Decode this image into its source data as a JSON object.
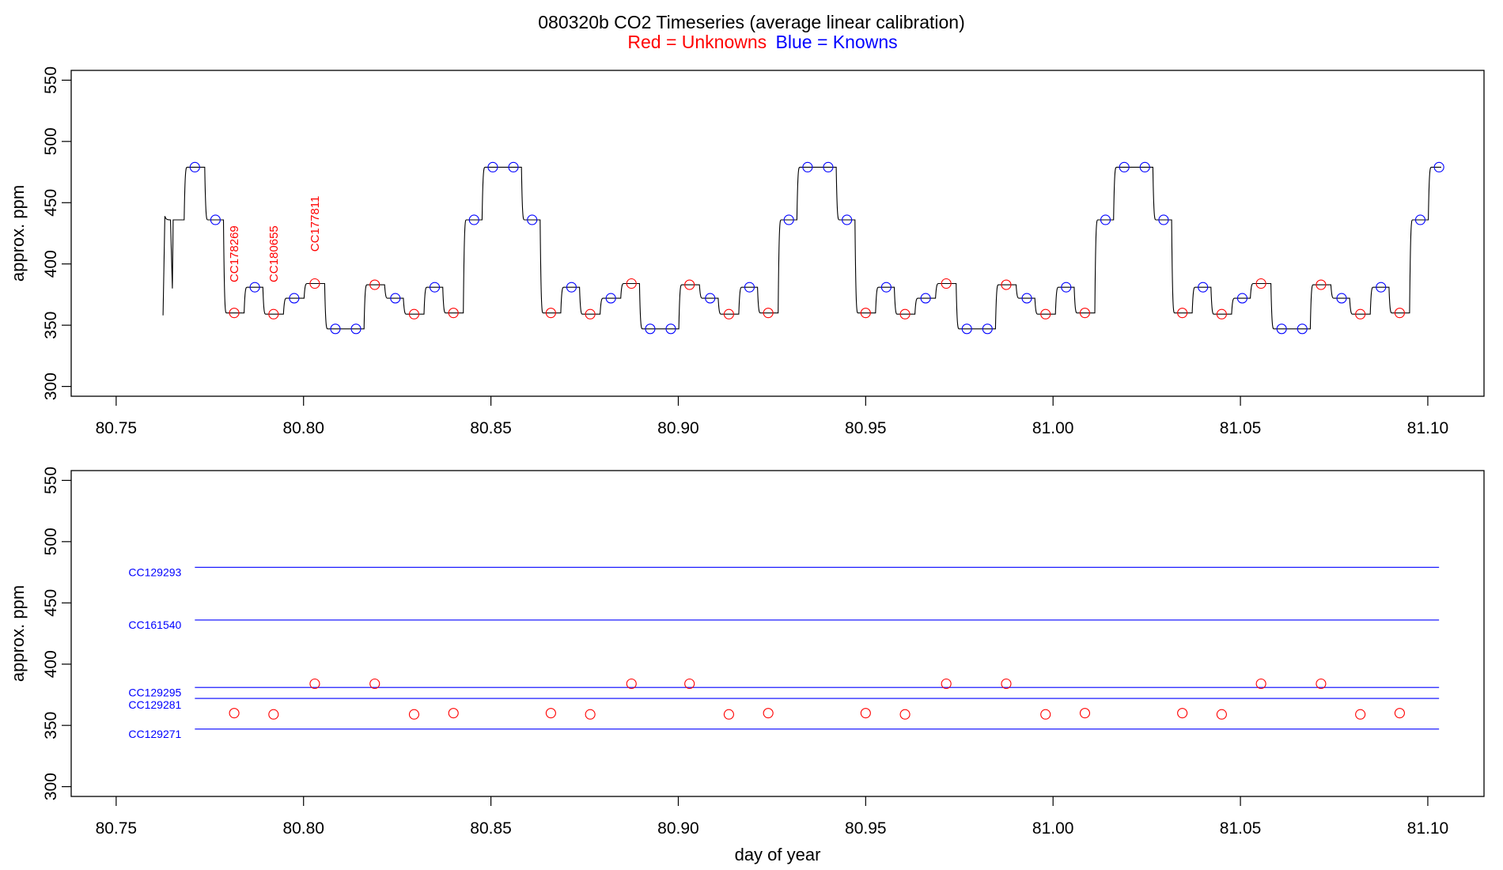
{
  "title": "080320b   CO2 Timeseries (average linear calibration)",
  "subtitle": {
    "red_part": "Red = Unknowns",
    "blue_part": "Blue = Knowns"
  },
  "colors": {
    "unknown": "#ff0000",
    "known": "#0000ff",
    "trace": "#000000",
    "frame": "#000000"
  },
  "chart_data": [
    {
      "type": "line",
      "panel": "top",
      "title": "",
      "xlabel": "",
      "ylabel": "approx. ppm",
      "xlim": [
        80.738,
        81.115
      ],
      "ylim": [
        292,
        558
      ],
      "grid": false,
      "x_ticks": [
        {
          "value": 80.75,
          "label": "80.75"
        },
        {
          "value": 80.8,
          "label": "80.80"
        },
        {
          "value": 80.85,
          "label": "80.85"
        },
        {
          "value": 80.9,
          "label": "80.90"
        },
        {
          "value": 80.95,
          "label": "80.95"
        },
        {
          "value": 81.0,
          "label": "81.00"
        },
        {
          "value": 81.05,
          "label": "81.05"
        },
        {
          "value": 81.1,
          "label": "81.10"
        }
      ],
      "y_ticks": [
        {
          "value": 300,
          "label": "300"
        },
        {
          "value": 350,
          "label": "350"
        },
        {
          "value": 400,
          "label": "400"
        },
        {
          "value": 450,
          "label": "450"
        },
        {
          "value": 500,
          "label": "500"
        },
        {
          "value": 550,
          "label": "550"
        }
      ],
      "trace_start": {
        "x": 80.7625,
        "y": 358
      },
      "series": [
        {
          "name": "",
          "kind": "samples",
          "color": "#ff0000",
          "points": [
            {
              "x": 80.7815,
              "y": 360
            },
            {
              "x": 80.792,
              "y": 359
            },
            {
              "x": 80.803,
              "y": 384
            },
            {
              "x": 80.819,
              "y": 383
            },
            {
              "x": 80.8295,
              "y": 359
            },
            {
              "x": 80.84,
              "y": 360
            },
            {
              "x": 80.866,
              "y": 360
            },
            {
              "x": 80.8765,
              "y": 359
            },
            {
              "x": 80.8875,
              "y": 384
            },
            {
              "x": 80.903,
              "y": 383
            },
            {
              "x": 80.9135,
              "y": 359
            },
            {
              "x": 80.924,
              "y": 360
            },
            {
              "x": 80.95,
              "y": 360
            },
            {
              "x": 80.9605,
              "y": 359
            },
            {
              "x": 80.9715,
              "y": 384
            },
            {
              "x": 80.9875,
              "y": 383
            },
            {
              "x": 80.998,
              "y": 359
            },
            {
              "x": 81.0085,
              "y": 360
            },
            {
              "x": 81.0345,
              "y": 360
            },
            {
              "x": 81.045,
              "y": 359
            },
            {
              "x": 81.0555,
              "y": 384
            },
            {
              "x": 81.0715,
              "y": 383
            },
            {
              "x": 81.082,
              "y": 359
            },
            {
              "x": 81.0925,
              "y": 360
            }
          ]
        },
        {
          "name": "",
          "kind": "standards",
          "color": "#0000ff",
          "points": [
            {
              "x": 80.771,
              "y": 479
            },
            {
              "x": 80.7765,
              "y": 436
            },
            {
              "x": 80.787,
              "y": 381
            },
            {
              "x": 80.7975,
              "y": 372
            },
            {
              "x": 80.8085,
              "y": 347
            },
            {
              "x": 80.814,
              "y": 347
            },
            {
              "x": 80.8245,
              "y": 372
            },
            {
              "x": 80.835,
              "y": 381
            },
            {
              "x": 80.8455,
              "y": 436
            },
            {
              "x": 80.8505,
              "y": 479
            },
            {
              "x": 80.856,
              "y": 479
            },
            {
              "x": 80.861,
              "y": 436
            },
            {
              "x": 80.8715,
              "y": 381
            },
            {
              "x": 80.882,
              "y": 372
            },
            {
              "x": 80.8925,
              "y": 347
            },
            {
              "x": 80.898,
              "y": 347
            },
            {
              "x": 80.9085,
              "y": 372
            },
            {
              "x": 80.919,
              "y": 381
            },
            {
              "x": 80.9295,
              "y": 436
            },
            {
              "x": 80.9345,
              "y": 479
            },
            {
              "x": 80.94,
              "y": 479
            },
            {
              "x": 80.945,
              "y": 436
            },
            {
              "x": 80.9555,
              "y": 381
            },
            {
              "x": 80.966,
              "y": 372
            },
            {
              "x": 80.977,
              "y": 347
            },
            {
              "x": 80.9825,
              "y": 347
            },
            {
              "x": 80.993,
              "y": 372
            },
            {
              "x": 81.0035,
              "y": 381
            },
            {
              "x": 81.014,
              "y": 436
            },
            {
              "x": 81.019,
              "y": 479
            },
            {
              "x": 81.0245,
              "y": 479
            },
            {
              "x": 81.0295,
              "y": 436
            },
            {
              "x": 81.04,
              "y": 381
            },
            {
              "x": 81.0505,
              "y": 372
            },
            {
              "x": 81.061,
              "y": 347
            },
            {
              "x": 81.0665,
              "y": 347
            },
            {
              "x": 81.077,
              "y": 372
            },
            {
              "x": 81.0875,
              "y": 381
            },
            {
              "x": 81.098,
              "y": 436
            },
            {
              "x": 81.103,
              "y": 479
            }
          ]
        }
      ],
      "annotations": [
        {
          "text": "CC178269",
          "x": 80.7815,
          "y": 385
        },
        {
          "text": "CC180655",
          "x": 80.792,
          "y": 385
        },
        {
          "text": "CC177811",
          "x": 80.803,
          "y": 410
        }
      ]
    },
    {
      "type": "scatter",
      "panel": "bottom",
      "title": "",
      "xlabel": "day of year",
      "ylabel": "approx. ppm",
      "xlim": [
        80.738,
        81.115
      ],
      "ylim": [
        292,
        558
      ],
      "grid": false,
      "x_ticks": [
        {
          "value": 80.75,
          "label": "80.75"
        },
        {
          "value": 80.8,
          "label": "80.80"
        },
        {
          "value": 80.85,
          "label": "80.85"
        },
        {
          "value": 80.9,
          "label": "80.90"
        },
        {
          "value": 80.95,
          "label": "80.95"
        },
        {
          "value": 81.0,
          "label": "81.00"
        },
        {
          "value": 81.05,
          "label": "81.05"
        },
        {
          "value": 81.1,
          "label": "81.10"
        }
      ],
      "y_ticks": [
        {
          "value": 300,
          "label": "300"
        },
        {
          "value": 350,
          "label": "350"
        },
        {
          "value": 400,
          "label": "400"
        },
        {
          "value": 450,
          "label": "450"
        },
        {
          "value": 500,
          "label": "500"
        },
        {
          "value": 550,
          "label": "550"
        }
      ],
      "reference_lines": [
        {
          "name": "CC129293",
          "y": 479,
          "x_start": 80.771,
          "x_end": 81.103,
          "label_y": 475
        },
        {
          "name": "CC161540",
          "y": 436,
          "x_start": 80.771,
          "x_end": 81.103,
          "label_y": 432
        },
        {
          "name": "CC129295",
          "y": 381,
          "x_start": 80.771,
          "x_end": 81.103,
          "label_y": 377
        },
        {
          "name": "CC129281",
          "y": 372,
          "x_start": 80.771,
          "x_end": 81.103,
          "label_y": 367
        },
        {
          "name": "CC129271",
          "y": 347,
          "x_start": 80.771,
          "x_end": 81.103,
          "label_y": 343
        }
      ],
      "series": [
        {
          "name": "",
          "kind": "samples",
          "color": "#ff0000",
          "points": [
            {
              "x": 80.7815,
              "y": 360
            },
            {
              "x": 80.792,
              "y": 359
            },
            {
              "x": 80.803,
              "y": 384
            },
            {
              "x": 80.819,
              "y": 384
            },
            {
              "x": 80.8295,
              "y": 359
            },
            {
              "x": 80.84,
              "y": 360
            },
            {
              "x": 80.866,
              "y": 360
            },
            {
              "x": 80.8765,
              "y": 359
            },
            {
              "x": 80.8875,
              "y": 384
            },
            {
              "x": 80.903,
              "y": 384
            },
            {
              "x": 80.9135,
              "y": 359
            },
            {
              "x": 80.924,
              "y": 360
            },
            {
              "x": 80.95,
              "y": 360
            },
            {
              "x": 80.9605,
              "y": 359
            },
            {
              "x": 80.9715,
              "y": 384
            },
            {
              "x": 80.9875,
              "y": 384
            },
            {
              "x": 80.998,
              "y": 359
            },
            {
              "x": 81.0085,
              "y": 360
            },
            {
              "x": 81.0345,
              "y": 360
            },
            {
              "x": 81.045,
              "y": 359
            },
            {
              "x": 81.0555,
              "y": 384
            },
            {
              "x": 81.0715,
              "y": 384
            },
            {
              "x": 81.082,
              "y": 359
            },
            {
              "x": 81.0925,
              "y": 360
            }
          ]
        }
      ]
    }
  ]
}
